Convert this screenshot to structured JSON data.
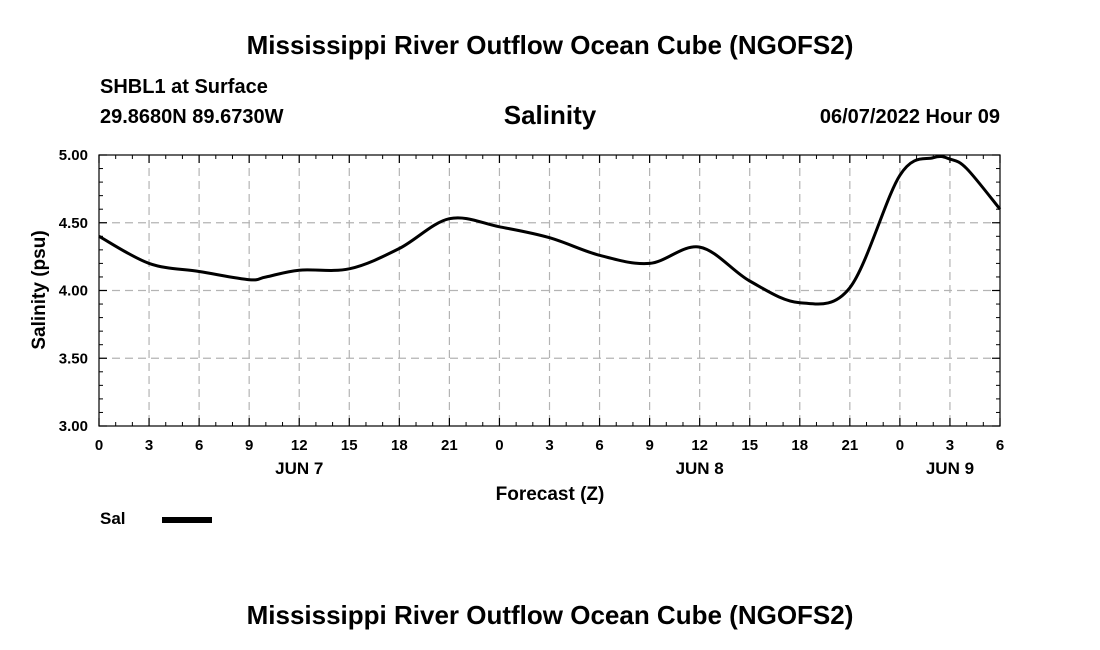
{
  "page": {
    "title": "Mississippi River Outflow Ocean Cube (NGOFS2)",
    "footer_title": "Mississippi River Outflow Ocean Cube (NGOFS2)",
    "station": "SHBL1 at Surface",
    "coords": "29.8680N  89.6730W",
    "datetime": "06/07/2022 Hour 09"
  },
  "legend": {
    "label": "Sal",
    "color": "#000000"
  },
  "chart_data": {
    "type": "line",
    "title": "Salinity",
    "xlabel": "Forecast (Z)",
    "ylabel": "Salinity (psu)",
    "ylim": [
      3.0,
      5.0
    ],
    "xlim": [
      0,
      54
    ],
    "yticks": [
      3.0,
      3.5,
      4.0,
      4.5,
      5.0
    ],
    "ytick_labels": [
      "3.00",
      "3.50",
      "4.00",
      "4.50",
      "5.00"
    ],
    "xticks": [
      0,
      3,
      6,
      9,
      12,
      15,
      18,
      21,
      24,
      27,
      30,
      33,
      36,
      39,
      42,
      45,
      48,
      51,
      54
    ],
    "xtick_labels": [
      "0",
      "3",
      "6",
      "9",
      "12",
      "15",
      "18",
      "21",
      "0",
      "3",
      "6",
      "9",
      "12",
      "15",
      "18",
      "21",
      "0",
      "3",
      "6"
    ],
    "day_labels": [
      {
        "x": 12,
        "label": "JUN 7"
      },
      {
        "x": 36,
        "label": "JUN 8"
      },
      {
        "x": 51,
        "label": "JUN 9"
      }
    ],
    "grid": true,
    "series": [
      {
        "name": "Sal",
        "color": "#000000",
        "x": [
          0,
          3,
          6,
          9,
          10,
          12,
          15,
          18,
          21,
          24,
          27,
          30,
          33,
          36,
          39,
          42,
          45,
          48,
          50,
          51,
          52,
          54
        ],
        "y": [
          4.4,
          4.2,
          4.14,
          4.08,
          4.1,
          4.15,
          4.16,
          4.31,
          4.53,
          4.47,
          4.39,
          4.26,
          4.2,
          4.32,
          4.07,
          3.91,
          4.02,
          4.85,
          4.98,
          4.97,
          4.9,
          4.6
        ]
      }
    ]
  }
}
